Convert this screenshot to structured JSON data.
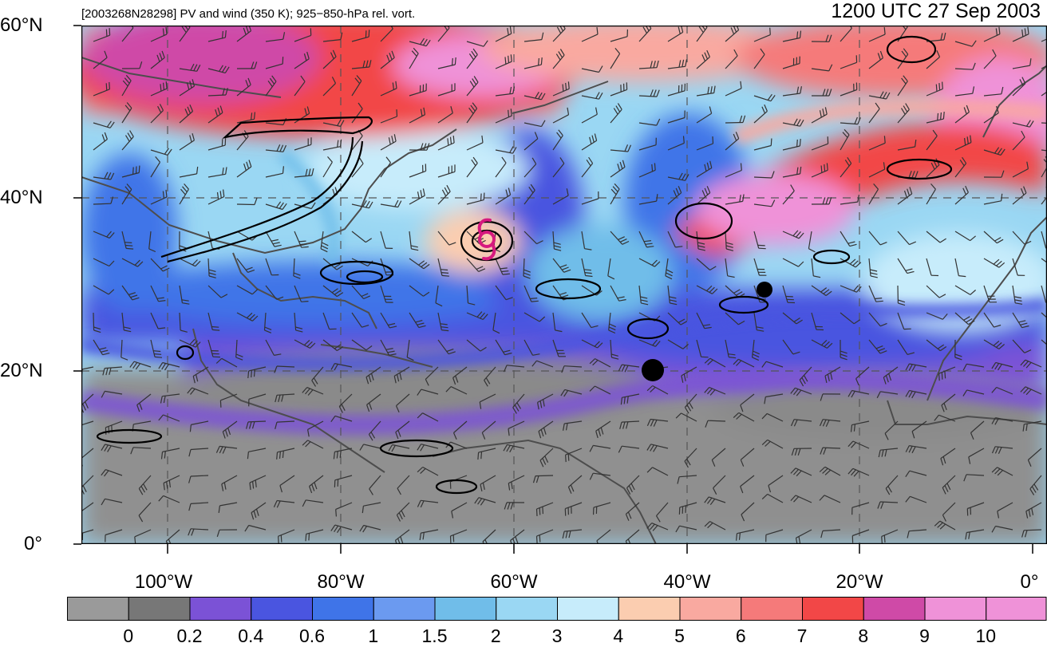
{
  "header": {
    "subtitle": "[2003268N28298] PV and wind (350 K); 925−850-hPa rel. vort.",
    "timestamp": "1200 UTC 27 Sep 2003"
  },
  "axes": {
    "lat_labels": [
      "60°N",
      "40°N",
      "20°N",
      "0°"
    ],
    "lon_labels": [
      "100°W",
      "80°W",
      "60°W",
      "40°W",
      "20°W",
      "0°"
    ]
  },
  "colorbar": {
    "labels": [
      "0",
      "0.2",
      "0.4",
      "0.6",
      "1",
      "1.5",
      "2",
      "3",
      "4",
      "5",
      "6",
      "7",
      "8",
      "9",
      "10"
    ],
    "colors": [
      "#9a9a9a",
      "#777777",
      "#7b52d6",
      "#4a55e0",
      "#3f74e8",
      "#6b9af0",
      "#70bde9",
      "#9ad7f3",
      "#c7ecfb",
      "#fbcdb0",
      "#f9a9a0",
      "#f57a7a",
      "#f24747",
      "#cf4aa7",
      "#ef92d8"
    ]
  },
  "colors": {
    "storm_marker": "#d6197f",
    "contour": "#000000",
    "coastline": "#4d4d4d",
    "grid_dash": "#555555"
  }
}
